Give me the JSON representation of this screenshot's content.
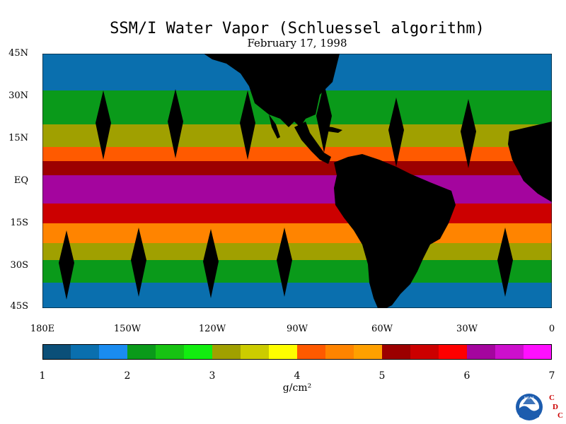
{
  "chart_data": {
    "type": "heatmap",
    "title": "SSM/I Water Vapor (Schluessel algorithm)",
    "subtitle": "February 17, 1998",
    "lat_ticks": [
      "45N",
      "30N",
      "15N",
      "EQ",
      "15S",
      "30S",
      "45S"
    ],
    "lon_ticks": [
      "180E",
      "150W",
      "120W",
      "90W",
      "60W",
      "30W",
      "0"
    ],
    "lon_range": [
      -180,
      0
    ],
    "lat_range": [
      -45,
      45
    ],
    "colorbar": {
      "label": "g/cm²",
      "min": 1,
      "max": 7,
      "tick_labels": [
        "1",
        "2",
        "3",
        "4",
        "5",
        "6",
        "7"
      ],
      "colors": [
        "#0b4f78",
        "#0a6fae",
        "#1a8cf0",
        "#0a9a1a",
        "#17c313",
        "#12ee10",
        "#a0a000",
        "#cccc00",
        "#ffff00",
        "#ff5a00",
        "#ff8400",
        "#ffa000",
        "#9c0000",
        "#cc0000",
        "#ff0000",
        "#a4059e",
        "#cc10cc",
        "#ff10ff"
      ]
    },
    "bands": [
      {
        "lat": [
          45,
          32
        ],
        "value": 1.6
      },
      {
        "lat": [
          32,
          20
        ],
        "value": 2.2
      },
      {
        "lat": [
          20,
          12
        ],
        "value": 3.0
      },
      {
        "lat": [
          12,
          7
        ],
        "value": 4.2
      },
      {
        "lat": [
          7,
          2
        ],
        "value": 5.2
      },
      {
        "lat": [
          2,
          -8
        ],
        "value": 6.3
      },
      {
        "lat": [
          -8,
          -15
        ],
        "value": 5.6
      },
      {
        "lat": [
          -15,
          -22
        ],
        "value": 4.4
      },
      {
        "lat": [
          -22,
          -28
        ],
        "value": 3.0
      },
      {
        "lat": [
          -28,
          -36
        ],
        "value": 2.3
      },
      {
        "lat": [
          -36,
          -45
        ],
        "value": 1.6
      }
    ],
    "land_color": "#000000",
    "missing_data_color": "#000000"
  },
  "logo": {
    "agency": "NOAA",
    "letters": [
      "C",
      "D",
      "C"
    ],
    "letter_color": "#cc0000"
  }
}
